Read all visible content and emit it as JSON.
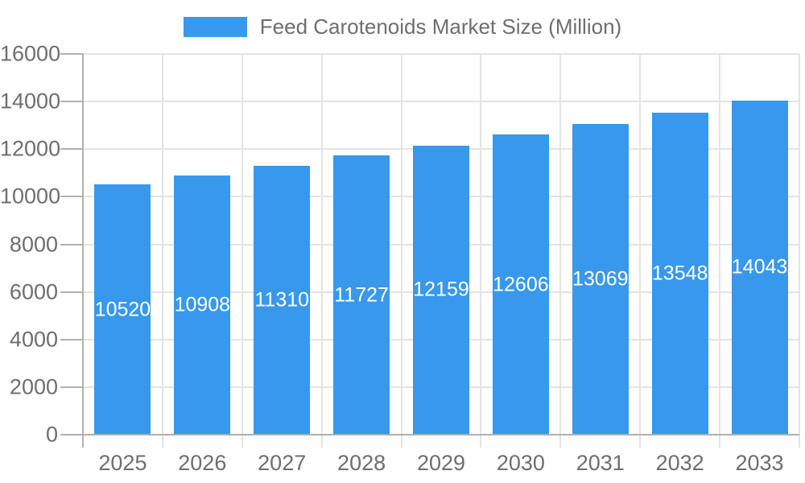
{
  "chart_data": {
    "type": "bar",
    "title": "Feed Carotenoids Market Size (Million)",
    "categories": [
      "2025",
      "2026",
      "2027",
      "2028",
      "2029",
      "2030",
      "2031",
      "2032",
      "2033"
    ],
    "values": [
      10520,
      10908,
      11310,
      11727,
      12159,
      12606,
      13069,
      13548,
      14043
    ],
    "xlabel": "",
    "ylabel": "",
    "ylim": [
      0,
      16000
    ],
    "yticks": [
      0,
      2000,
      4000,
      6000,
      8000,
      10000,
      12000,
      14000,
      16000
    ],
    "grid": true,
    "legend_position": "top",
    "colors": {
      "bar": "#3898EC",
      "bar_label": "#FFFFFF",
      "axis_line": "#B0B0B0",
      "gridline": "#E3E3E3",
      "axis_text": "#6E6E6E"
    }
  }
}
